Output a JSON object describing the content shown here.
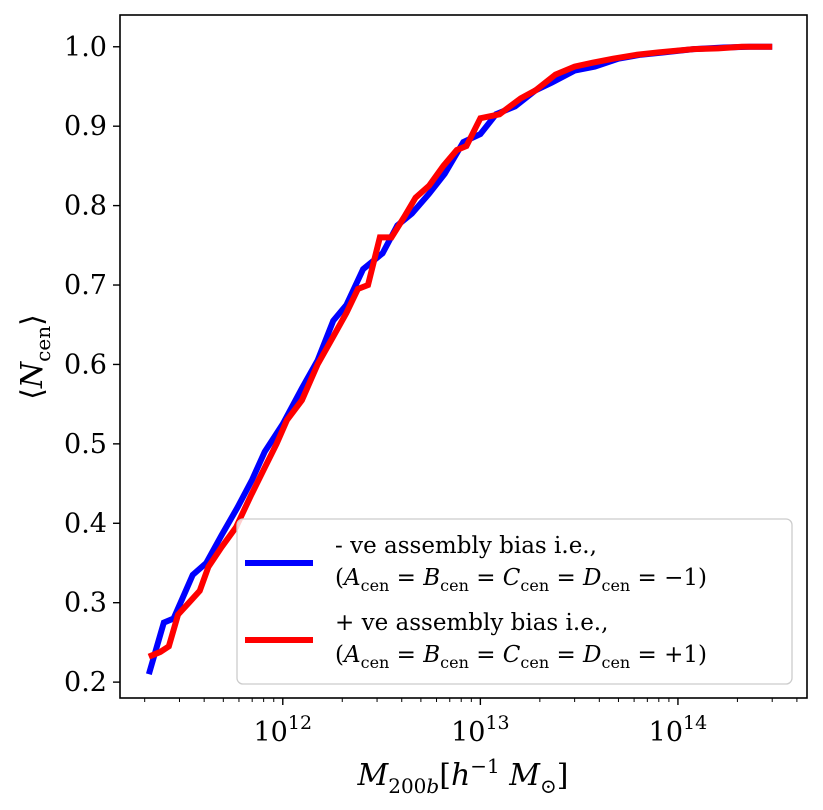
{
  "chart_data": {
    "type": "line",
    "xscale": "log",
    "xlabel": "M_200b [h^-1 M_⊙]",
    "ylabel": "⟨N_cen⟩",
    "xlim": [
      150000000000.0,
      450000000000000.0
    ],
    "ylim": [
      0.18,
      1.04
    ],
    "grid": false,
    "legend_position": "lower-right",
    "x_ticks": [
      {
        "value": 1000000000000.0,
        "base": "10",
        "exp": "12"
      },
      {
        "value": 10000000000000.0,
        "base": "10",
        "exp": "13"
      },
      {
        "value": 100000000000000.0,
        "base": "10",
        "exp": "14"
      }
    ],
    "y_ticks": [
      "0.2",
      "0.3",
      "0.4",
      "0.5",
      "0.6",
      "0.7",
      "0.8",
      "0.9",
      "1.0"
    ],
    "series": [
      {
        "name": "- ve assembly bias i.e.,",
        "name_line2": "(A_cen = B_cen = C_cen = D_cen = −1)",
        "color": "#0000ff",
        "points": [
          [
            210000000000.0,
            0.21
          ],
          [
            250000000000.0,
            0.275
          ],
          [
            280000000000.0,
            0.28
          ],
          [
            310000000000.0,
            0.305
          ],
          [
            350000000000.0,
            0.335
          ],
          [
            410000000000.0,
            0.35
          ],
          [
            490000000000.0,
            0.385
          ],
          [
            590000000000.0,
            0.42
          ],
          [
            700000000000.0,
            0.455
          ],
          [
            810000000000.0,
            0.49
          ],
          [
            1000000000000.0,
            0.525
          ],
          [
            1250000000000.0,
            0.57
          ],
          [
            1500000000000.0,
            0.605
          ],
          [
            1800000000000.0,
            0.655
          ],
          [
            2100000000000.0,
            0.675
          ],
          [
            2550000000000.0,
            0.72
          ],
          [
            3200000000000.0,
            0.74
          ],
          [
            3800000000000.0,
            0.775
          ],
          [
            4500000000000.0,
            0.79
          ],
          [
            5500000000000.0,
            0.815
          ],
          [
            6600000000000.0,
            0.84
          ],
          [
            8200000000000.0,
            0.88
          ],
          [
            10000000000000.0,
            0.89
          ],
          [
            12000000000000.0,
            0.915
          ],
          [
            15000000000000.0,
            0.925
          ],
          [
            19000000000000.0,
            0.945
          ],
          [
            23000000000000.0,
            0.955
          ],
          [
            30000000000000.0,
            0.97
          ],
          [
            38000000000000.0,
            0.975
          ],
          [
            50000000000000.0,
            0.985
          ],
          [
            65000000000000.0,
            0.99
          ],
          [
            85000000000000.0,
            0.993
          ],
          [
            120000000000000.0,
            0.997
          ],
          [
            170000000000000.0,
            0.999
          ],
          [
            230000000000000.0,
            1.0
          ],
          [
            300000000000000.0,
            1.0
          ]
        ]
      },
      {
        "name": "+ ve assembly bias i.e.,",
        "name_line2": "(A_cen = B_cen = C_cen = D_cen = +1)",
        "color": "#ff0000",
        "points": [
          [
            210000000000.0,
            0.232
          ],
          [
            240000000000.0,
            0.238
          ],
          [
            265000000000.0,
            0.245
          ],
          [
            295000000000.0,
            0.285
          ],
          [
            335000000000.0,
            0.3
          ],
          [
            380000000000.0,
            0.315
          ],
          [
            420000000000.0,
            0.345
          ],
          [
            490000000000.0,
            0.37
          ],
          [
            580000000000.0,
            0.395
          ],
          [
            690000000000.0,
            0.435
          ],
          [
            810000000000.0,
            0.47
          ],
          [
            930000000000.0,
            0.5
          ],
          [
            1050000000000.0,
            0.53
          ],
          [
            1250000000000.0,
            0.555
          ],
          [
            1500000000000.0,
            0.6
          ],
          [
            1800000000000.0,
            0.635
          ],
          [
            2100000000000.0,
            0.665
          ],
          [
            2400000000000.0,
            0.695
          ],
          [
            2700000000000.0,
            0.7
          ],
          [
            3100000000000.0,
            0.76
          ],
          [
            3550000000000.0,
            0.76
          ],
          [
            4100000000000.0,
            0.785
          ],
          [
            4700000000000.0,
            0.81
          ],
          [
            5500000000000.0,
            0.825
          ],
          [
            6500000000000.0,
            0.85
          ],
          [
            7600000000000.0,
            0.87
          ],
          [
            8500000000000.0,
            0.875
          ],
          [
            10000000000000.0,
            0.91
          ],
          [
            12500000000000.0,
            0.915
          ],
          [
            16000000000000.0,
            0.935
          ],
          [
            19000000000000.0,
            0.945
          ],
          [
            24000000000000.0,
            0.965
          ],
          [
            30000000000000.0,
            0.975
          ],
          [
            37000000000000.0,
            0.98
          ],
          [
            47000000000000.0,
            0.985
          ],
          [
            62000000000000.0,
            0.99
          ],
          [
            80000000000000.0,
            0.993
          ],
          [
            120000000000000.0,
            0.997
          ],
          [
            160000000000000.0,
            0.998
          ],
          [
            210000000000000.0,
            1.0
          ],
          [
            300000000000000.0,
            1.0
          ]
        ]
      }
    ]
  }
}
